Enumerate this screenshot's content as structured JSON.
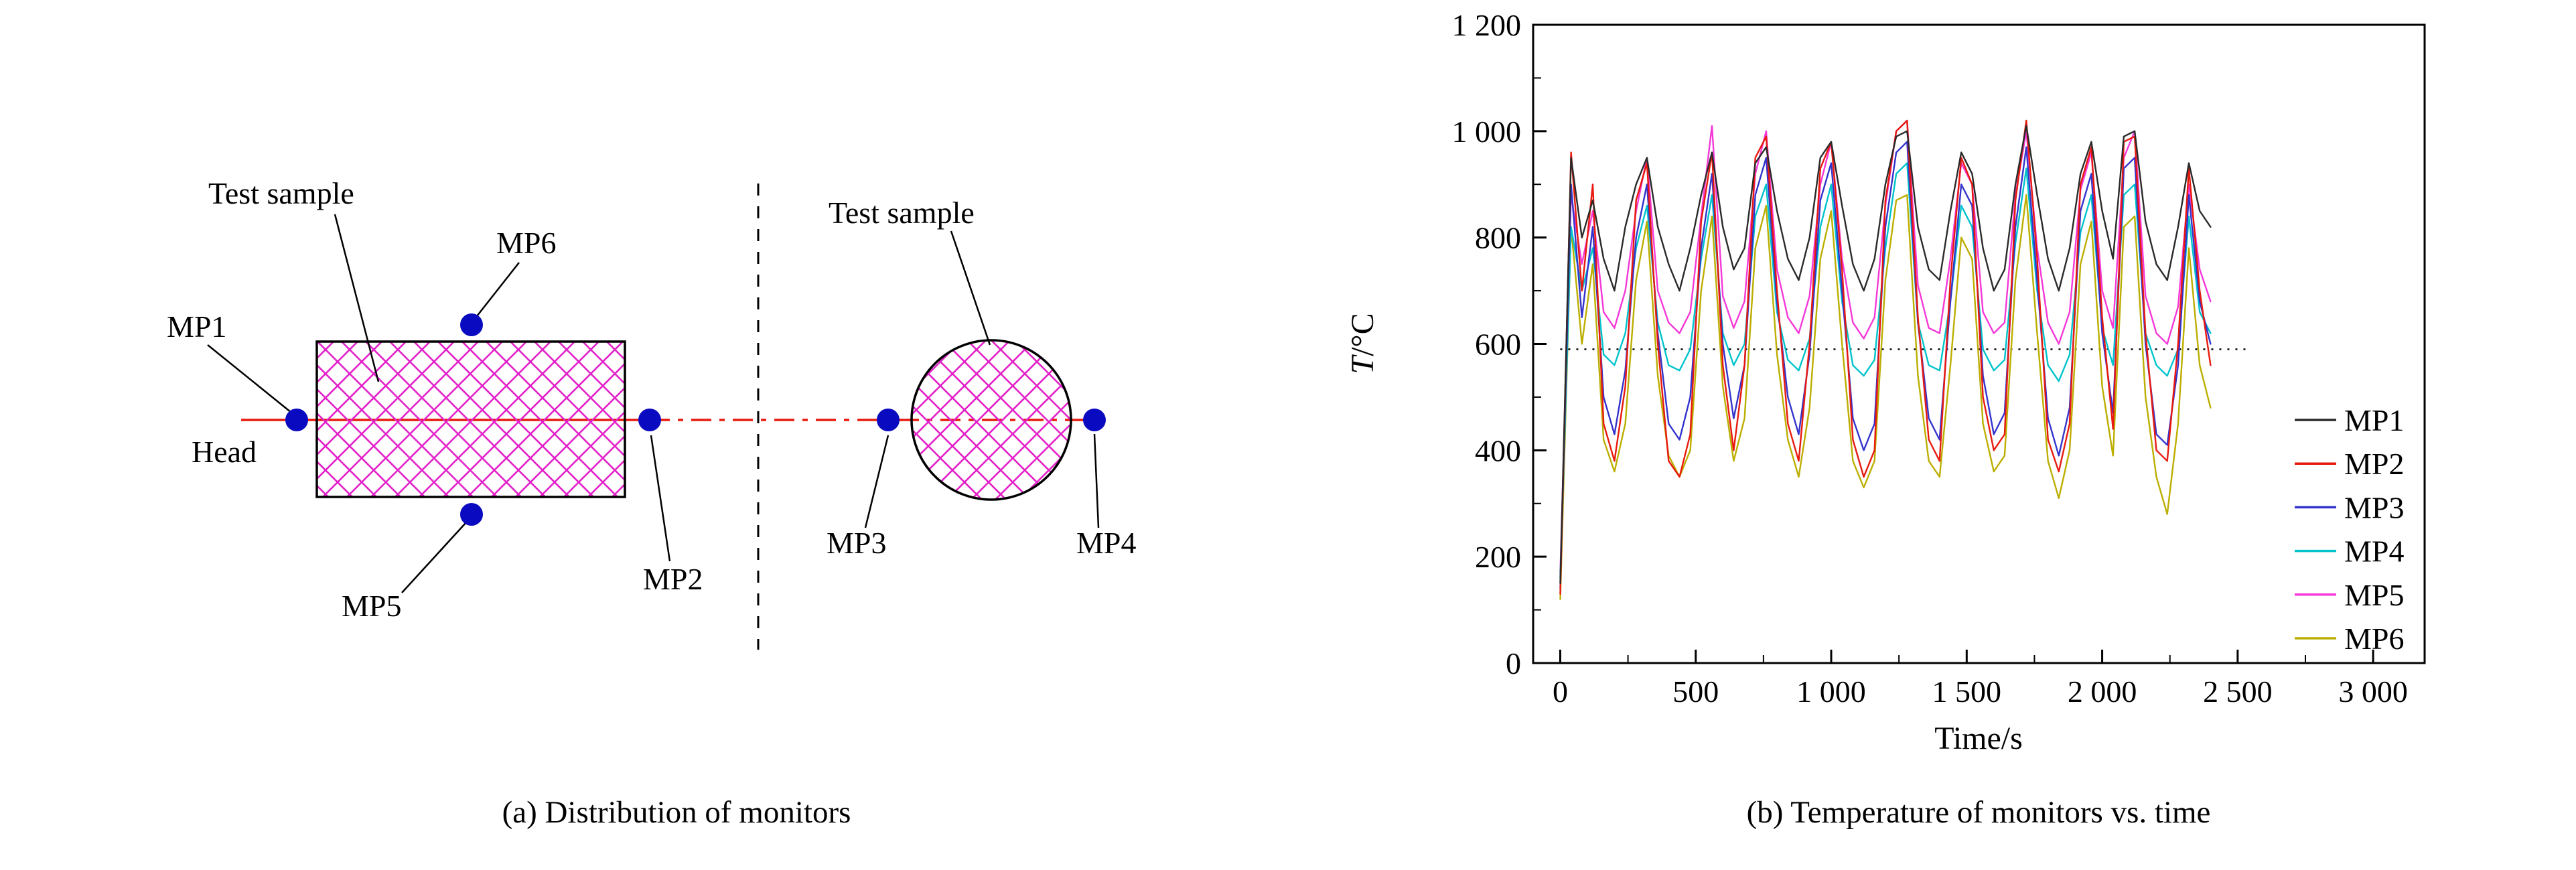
{
  "figure": {
    "panel_a": {
      "caption": "(a) Distribution of monitors",
      "labels": {
        "test_sample_left": "Test sample",
        "test_sample_right": "Test sample",
        "mp1": "MP1",
        "mp2": "MP2",
        "mp3": "MP3",
        "mp4": "MP4",
        "mp5": "MP5",
        "mp6": "MP6",
        "head": "Head"
      },
      "colors": {
        "hatch": "#e321c9",
        "marker": "#0a0ac0",
        "centerline": "#e8190e"
      }
    },
    "panel_b": {
      "caption": "(b) Temperature of monitors vs. time"
    }
  },
  "chart_data": {
    "type": "line",
    "title": "",
    "xlabel": "Time/s",
    "ylabel": "T/°C",
    "ylabel_symbol": "T",
    "ylabel_unit": "/°C",
    "xlim": [
      0,
      3000
    ],
    "ylim": [
      0,
      1200
    ],
    "grid": false,
    "legend_position": "right-inside",
    "x_ticks": [
      {
        "value": 0,
        "label": "0"
      },
      {
        "value": 500,
        "label": "500"
      },
      {
        "value": 1000,
        "label": "1 000"
      },
      {
        "value": 1500,
        "label": "1 500"
      },
      {
        "value": 2000,
        "label": "2 000"
      },
      {
        "value": 2500,
        "label": "2 500"
      },
      {
        "value": 3000,
        "label": "3 000"
      }
    ],
    "y_ticks": [
      {
        "value": 0,
        "label": "0"
      },
      {
        "value": 200,
        "label": "200"
      },
      {
        "value": 400,
        "label": "400"
      },
      {
        "value": 600,
        "label": "600"
      },
      {
        "value": 800,
        "label": "800"
      },
      {
        "value": 1000,
        "label": "1 000"
      },
      {
        "value": 1200,
        "label": "1 200"
      }
    ],
    "reference_line": {
      "y": 590,
      "style": "dotted",
      "x_start": 0,
      "x_end": 2550
    },
    "x": [
      0,
      40,
      80,
      120,
      160,
      200,
      240,
      280,
      320,
      360,
      400,
      440,
      480,
      520,
      560,
      600,
      640,
      680,
      720,
      760,
      800,
      840,
      880,
      920,
      960,
      1000,
      1040,
      1080,
      1120,
      1160,
      1200,
      1240,
      1280,
      1320,
      1360,
      1400,
      1440,
      1480,
      1520,
      1560,
      1600,
      1640,
      1680,
      1720,
      1760,
      1800,
      1840,
      1880,
      1920,
      1960,
      2000,
      2040,
      2080,
      2120,
      2160,
      2200,
      2240,
      2280,
      2320,
      2360,
      2400
    ],
    "series": [
      {
        "name": "MP1",
        "color": "#2a2a2a",
        "values": [
          150,
          950,
          800,
          870,
          760,
          700,
          820,
          900,
          950,
          820,
          750,
          700,
          780,
          880,
          960,
          820,
          740,
          780,
          940,
          970,
          850,
          760,
          720,
          800,
          950,
          980,
          860,
          750,
          700,
          760,
          900,
          990,
          1000,
          820,
          740,
          720,
          850,
          960,
          920,
          780,
          700,
          740,
          900,
          1010,
          880,
          760,
          700,
          780,
          920,
          980,
          850,
          760,
          990,
          1000,
          830,
          750,
          720,
          820,
          940,
          850,
          820
        ]
      },
      {
        "name": "MP2",
        "color": "#e8190e",
        "values": [
          130,
          960,
          700,
          900,
          450,
          380,
          520,
          870,
          940,
          600,
          380,
          350,
          430,
          830,
          960,
          560,
          400,
          560,
          950,
          990,
          700,
          450,
          380,
          600,
          930,
          980,
          740,
          420,
          350,
          400,
          870,
          1000,
          1020,
          650,
          420,
          380,
          720,
          950,
          900,
          500,
          400,
          430,
          870,
          1020,
          760,
          420,
          360,
          450,
          900,
          970,
          650,
          440,
          980,
          990,
          620,
          400,
          380,
          600,
          930,
          700,
          560
        ]
      },
      {
        "name": "MP3",
        "color": "#3333cc",
        "values": [
          140,
          900,
          650,
          820,
          500,
          430,
          550,
          800,
          900,
          620,
          450,
          420,
          500,
          780,
          920,
          600,
          460,
          560,
          880,
          950,
          680,
          500,
          430,
          580,
          870,
          940,
          700,
          460,
          400,
          450,
          820,
          960,
          980,
          640,
          460,
          420,
          680,
          900,
          860,
          540,
          430,
          470,
          820,
          970,
          720,
          460,
          390,
          480,
          850,
          920,
          620,
          470,
          930,
          950,
          600,
          430,
          410,
          560,
          880,
          680,
          600
        ]
      },
      {
        "name": "MP4",
        "color": "#00c3cc",
        "values": [
          160,
          820,
          700,
          780,
          580,
          560,
          620,
          780,
          860,
          640,
          560,
          550,
          590,
          760,
          880,
          620,
          560,
          600,
          840,
          900,
          660,
          570,
          550,
          610,
          820,
          900,
          680,
          560,
          540,
          570,
          780,
          920,
          940,
          640,
          560,
          550,
          680,
          860,
          820,
          590,
          550,
          570,
          790,
          930,
          700,
          560,
          530,
          580,
          810,
          880,
          630,
          560,
          880,
          900,
          620,
          560,
          540,
          590,
          840,
          660,
          620
        ]
      },
      {
        "name": "MP5",
        "color": "#f438d8",
        "values": [
          170,
          880,
          750,
          850,
          660,
          630,
          700,
          850,
          950,
          700,
          640,
          620,
          660,
          840,
          1010,
          690,
          630,
          680,
          920,
          1000,
          740,
          650,
          620,
          690,
          900,
          980,
          760,
          640,
          610,
          650,
          860,
          1000,
          1020,
          710,
          630,
          620,
          760,
          940,
          900,
          660,
          620,
          640,
          880,
          1000,
          780,
          640,
          600,
          660,
          890,
          960,
          700,
          630,
          950,
          1000,
          690,
          620,
          600,
          670,
          900,
          740,
          680
        ]
      },
      {
        "name": "MP6",
        "color": "#bcae00",
        "values": [
          120,
          820,
          600,
          750,
          420,
          360,
          450,
          720,
          830,
          540,
          390,
          350,
          400,
          700,
          840,
          520,
          380,
          460,
          780,
          860,
          580,
          420,
          350,
          480,
          760,
          850,
          600,
          380,
          330,
          380,
          720,
          870,
          880,
          540,
          380,
          350,
          560,
          800,
          760,
          450,
          360,
          390,
          720,
          880,
          620,
          380,
          310,
          400,
          750,
          830,
          520,
          390,
          820,
          840,
          500,
          350,
          280,
          450,
          780,
          560,
          480
        ]
      }
    ]
  }
}
